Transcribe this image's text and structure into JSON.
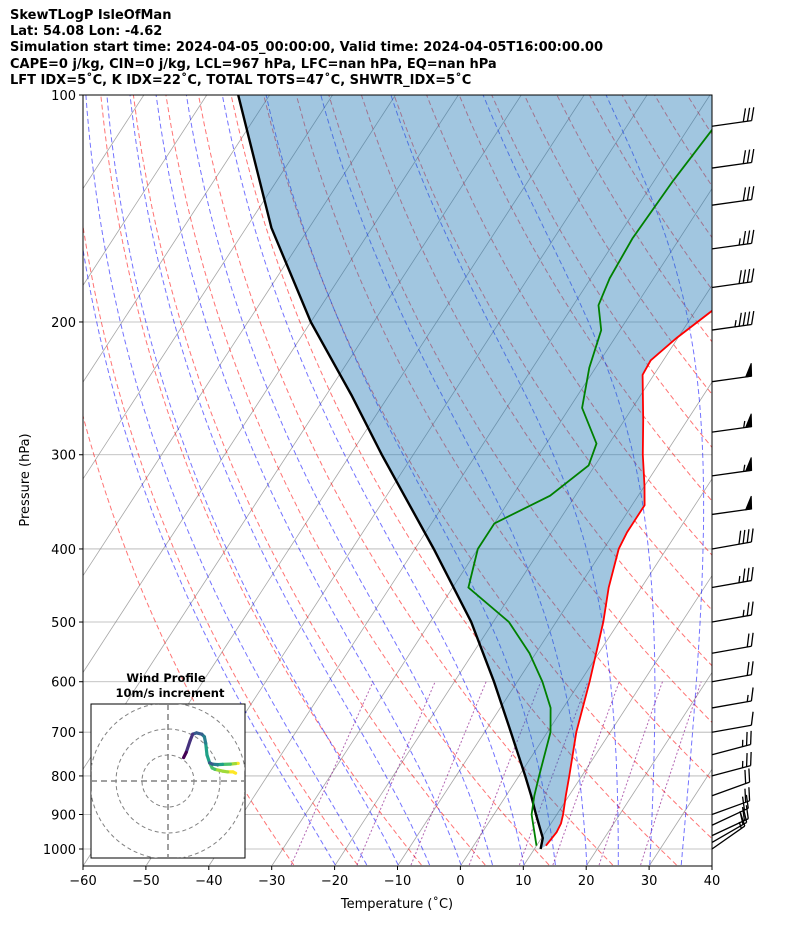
{
  "header": {
    "line1": "SkewTLogP IsleOfMan",
    "line2": "Lat: 54.08   Lon: -4.62",
    "line3": "Simulation start time: 2024-04-05_00:00:00, Valid time: 2024-04-05T16:00:00.00",
    "line4": "CAPE=0 j/kg, CIN=0 j/kg, LCL=967 hPa, LFC=nan hPa, EQ=nan hPa",
    "line5": "LFT IDX=5˚C, K IDX=22˚C, TOTAL TOTS=47˚C, SHWTR_IDX=5˚C"
  },
  "chart_data": {
    "type": "skewt",
    "xlabel": "Temperature (˚C)",
    "ylabel": "Pressure (hPa)",
    "xlim": [
      -60,
      40
    ],
    "ylim": [
      1050,
      100
    ],
    "xticks": [
      -60,
      -50,
      -40,
      -30,
      -20,
      -10,
      0,
      10,
      20,
      30,
      40
    ],
    "xtick_labels": [
      "−60",
      "−50",
      "−40",
      "−30",
      "−20",
      "−10",
      "0",
      "10",
      "20",
      "30",
      "40"
    ],
    "yticks": [
      1000,
      900,
      800,
      700,
      600,
      500,
      400,
      300,
      200,
      100
    ],
    "ytick_labels": [
      "1000",
      "900",
      "800",
      "700",
      "600",
      "500",
      "400",
      "300",
      "200",
      "100"
    ],
    "colors": {
      "temperature": "#ff0000",
      "dewpoint": "#008000",
      "parcel": "#000000",
      "cape_fill": "#1f77b4",
      "dry_adiabat": "#ff0000",
      "moist_adiabat": "#0000ff",
      "isotherm": "#808080",
      "mixing_ratio": "#800080"
    },
    "temperature": [
      [
        990,
        11.5
      ],
      [
        950,
        11.8
      ],
      [
        925,
        11.6
      ],
      [
        900,
        11.0
      ],
      [
        850,
        9.5
      ],
      [
        800,
        8.0
      ],
      [
        700,
        4.6
      ],
      [
        600,
        1.5
      ],
      [
        500,
        -2.5
      ],
      [
        450,
        -5.2
      ],
      [
        400,
        -7.6
      ],
      [
        380,
        -8.0
      ],
      [
        350,
        -8.0
      ],
      [
        330,
        -10.0
      ],
      [
        300,
        -13.5
      ],
      [
        270,
        -17.0
      ],
      [
        235,
        -21.8
      ],
      [
        225,
        -22.0
      ],
      [
        210,
        -20.2
      ],
      [
        190,
        -16.8
      ],
      [
        170,
        -16.8
      ],
      [
        150,
        -17.8
      ],
      [
        140,
        -19.5
      ],
      [
        130,
        -21.5
      ],
      [
        120,
        -22.0
      ],
      [
        110,
        -22.5
      ],
      [
        100,
        -25.0
      ]
    ],
    "dewpoint": [
      [
        990,
        10.0
      ],
      [
        900,
        6.0
      ],
      [
        850,
        4.5
      ],
      [
        800,
        3.2
      ],
      [
        700,
        0.5
      ],
      [
        650,
        -2.0
      ],
      [
        600,
        -6.0
      ],
      [
        550,
        -11.0
      ],
      [
        500,
        -17.5
      ],
      [
        450,
        -27.5
      ],
      [
        400,
        -30.0
      ],
      [
        370,
        -30.0
      ],
      [
        340,
        -24.0
      ],
      [
        310,
        -21.0
      ],
      [
        290,
        -22.0
      ],
      [
        260,
        -28.0
      ],
      [
        230,
        -31.0
      ],
      [
        205,
        -33.0
      ],
      [
        190,
        -36.0
      ],
      [
        175,
        -37.0
      ],
      [
        155,
        -37.5
      ],
      [
        130,
        -37.0
      ],
      [
        110,
        -36.0
      ],
      [
        100,
        -35.0
      ]
    ],
    "parcel": [
      [
        1000,
        11.0
      ],
      [
        967,
        10.2
      ],
      [
        900,
        6.7
      ],
      [
        850,
        4.0
      ],
      [
        800,
        1.0
      ],
      [
        700,
        -5.8
      ],
      [
        600,
        -13.7
      ],
      [
        500,
        -23.5
      ],
      [
        400,
        -37.0
      ],
      [
        300,
        -55.0
      ],
      [
        250,
        -66.0
      ],
      [
        200,
        -80.0
      ],
      [
        150,
        -96.0
      ],
      [
        100,
        -115.0
      ]
    ],
    "wind_barbs": [
      {
        "p": 1000,
        "speed_kt": 15,
        "dir": 235
      },
      {
        "p": 980,
        "speed_kt": 20,
        "dir": 240
      },
      {
        "p": 960,
        "speed_kt": 20,
        "dir": 245
      },
      {
        "p": 930,
        "speed_kt": 20,
        "dir": 245
      },
      {
        "p": 900,
        "speed_kt": 20,
        "dir": 250
      },
      {
        "p": 850,
        "speed_kt": 20,
        "dir": 250
      },
      {
        "p": 800,
        "speed_kt": 25,
        "dir": 255
      },
      {
        "p": 750,
        "speed_kt": 25,
        "dir": 255
      },
      {
        "p": 700,
        "speed_kt": 10,
        "dir": 260
      },
      {
        "p": 650,
        "speed_kt": 15,
        "dir": 260
      },
      {
        "p": 600,
        "speed_kt": 20,
        "dir": 260
      },
      {
        "p": 550,
        "speed_kt": 20,
        "dir": 260
      },
      {
        "p": 500,
        "speed_kt": 25,
        "dir": 260
      },
      {
        "p": 450,
        "speed_kt": 35,
        "dir": 260
      },
      {
        "p": 400,
        "speed_kt": 40,
        "dir": 260
      },
      {
        "p": 360,
        "speed_kt": 50,
        "dir": 262
      },
      {
        "p": 320,
        "speed_kt": 55,
        "dir": 262
      },
      {
        "p": 280,
        "speed_kt": 55,
        "dir": 262
      },
      {
        "p": 240,
        "speed_kt": 50,
        "dir": 262
      },
      {
        "p": 205,
        "speed_kt": 45,
        "dir": 262
      },
      {
        "p": 180,
        "speed_kt": 40,
        "dir": 262
      },
      {
        "p": 160,
        "speed_kt": 35,
        "dir": 262
      },
      {
        "p": 140,
        "speed_kt": 30,
        "dir": 262
      },
      {
        "p": 125,
        "speed_kt": 30,
        "dir": 262
      },
      {
        "p": 110,
        "speed_kt": 30,
        "dir": 262
      }
    ],
    "inset": {
      "title_line1": "Wind Profile",
      "title_line2": "10m/s increment",
      "ring_step_ms": 10,
      "rings": 3,
      "hodograph_uv": [
        [
          26.0,
          3.0
        ],
        [
          25.0,
          3.5
        ],
        [
          23.0,
          3.5
        ],
        [
          21.0,
          3.8
        ],
        [
          18.0,
          4.5
        ],
        [
          17.0,
          5.0
        ],
        [
          16.0,
          7.0
        ],
        [
          15.0,
          10.0
        ],
        [
          14.5,
          14.5
        ],
        [
          14.0,
          17.0
        ],
        [
          13.0,
          18.0
        ],
        [
          11.0,
          18.5
        ],
        [
          9.5,
          18.0
        ],
        [
          8.5,
          15.5
        ],
        [
          7.0,
          11.0
        ],
        [
          6.0,
          9.0
        ],
        [
          16.0,
          7.0
        ],
        [
          17.0,
          6.5
        ],
        [
          19.0,
          6.3
        ],
        [
          21.0,
          6.4
        ],
        [
          24.0,
          6.5
        ],
        [
          26.0,
          6.7
        ],
        [
          27.0,
          6.8
        ]
      ],
      "segment_colors": [
        "#fde725",
        "#a0da39",
        "#4ac16d",
        "#1fa187",
        "#277f8e",
        "#365c8d",
        "#46327e",
        "#440154"
      ]
    }
  }
}
